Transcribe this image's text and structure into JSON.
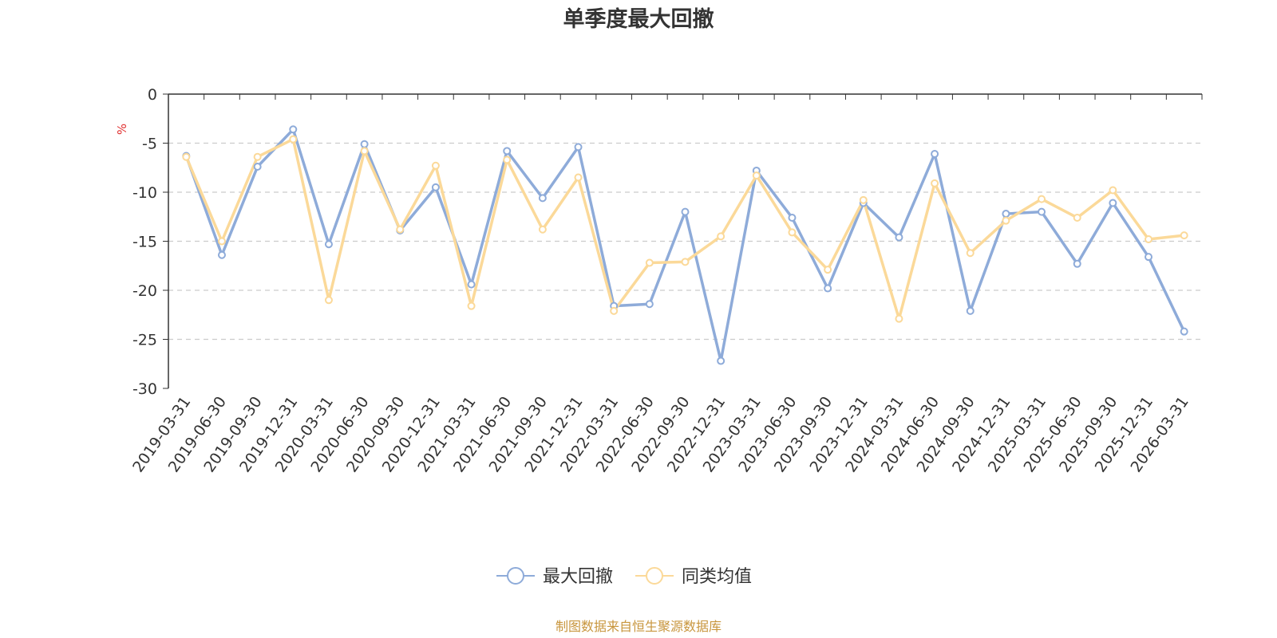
{
  "chart_data": {
    "type": "line",
    "title": "单季度最大回撤",
    "ylabel": "%",
    "ylim": [
      -30,
      0
    ],
    "yticks": [
      0,
      -5,
      -10,
      -15,
      -20,
      -25,
      -30
    ],
    "grid": true,
    "legend_position": "bottom-center",
    "categories": [
      "2019-03-31",
      "2019-06-30",
      "2019-09-30",
      "2019-12-31",
      "2020-03-31",
      "2020-06-30",
      "2020-09-30",
      "2020-12-31",
      "2021-03-31",
      "2021-06-30",
      "2021-09-30",
      "2021-12-31",
      "2022-03-31",
      "2022-06-30",
      "2022-09-30",
      "2022-12-31",
      "2023-03-31",
      "2023-06-30",
      "2023-09-30",
      "2023-12-31",
      "2024-03-31",
      "2024-06-30",
      "2024-09-30",
      "2024-12-31",
      "2025-03-31",
      "2025-06-30",
      "2025-09-30",
      "2025-12-31",
      "2026-03-31"
    ],
    "series": [
      {
        "name": "最大回撤",
        "color": "#8eabd9",
        "values": [
          -6.3,
          -16.4,
          -7.4,
          -3.6,
          -15.3,
          -5.1,
          -13.9,
          -9.5,
          -19.4,
          -5.8,
          -10.6,
          -5.4,
          -21.6,
          -21.4,
          -12.0,
          -27.2,
          -7.8,
          -12.6,
          -19.8,
          -11.1,
          -14.6,
          -6.1,
          -22.1,
          -12.2,
          -12.0,
          -17.3,
          -11.1,
          -16.6,
          -24.2
        ]
      },
      {
        "name": "同类均值",
        "color": "#fbd999",
        "values": [
          -6.4,
          -15.0,
          -6.4,
          -4.6,
          -21.0,
          -5.8,
          -13.8,
          -7.3,
          -21.6,
          -6.7,
          -13.8,
          -8.5,
          -22.1,
          -17.2,
          -17.1,
          -14.5,
          -8.3,
          -14.1,
          -17.9,
          -10.8,
          -22.9,
          -9.1,
          -16.2,
          -12.9,
          -10.7,
          -12.6,
          -9.8,
          -14.8,
          -14.4
        ]
      }
    ]
  },
  "unit_color": "#e03030",
  "source_text": "制图数据来自恒生聚源数据库",
  "source_color": "#c8963e"
}
